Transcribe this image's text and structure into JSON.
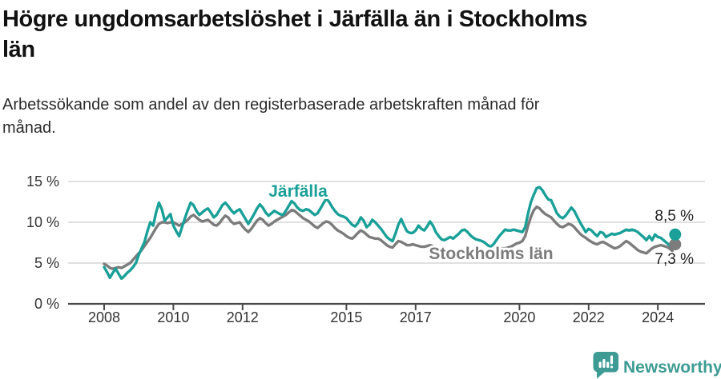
{
  "header": {
    "title": "Högre ungdomsarbetslöshet i Järfälla än i Stockholms län",
    "title_lines": [
      "Högre ungdomsarbetslöshet i Järfälla än i Stockholms",
      "län"
    ],
    "subtitle": "Arbetssökande som andel av den registerbaserade arbetskraften månad för månad.",
    "subtitle_lines": [
      "Arbetssökande som andel av den registerbaserade arbetskraften månad för",
      "månad."
    ]
  },
  "footer": {
    "brand": "Newsworthy",
    "logo_icon": "bar-chart-speech-bubble-icon"
  },
  "colors": {
    "jarfalla": "#1AA098",
    "stockholms_lan": "#7C7C7C",
    "end_label_text": "#222222",
    "axis_line": "#4a4a4a",
    "tick_label": "#333333",
    "gridline": "#e0e0e0",
    "brand_teal": "#3D9B94",
    "title_text": "#111111"
  },
  "chart_data": {
    "type": "line",
    "title": "Högre ungdomsarbetslöshet i Järfälla än i Stockholms län",
    "subtitle": "Arbetssökande som andel av den registerbaserade arbetskraften månad för månad.",
    "x_start": "2008-01",
    "x_end": "2024-07",
    "x_frequency": "monthly",
    "x_ticks": [
      2008,
      2010,
      2012,
      2015,
      2020,
      2022,
      2024,
      2017
    ],
    "x_tick_order": [
      2008,
      2010,
      2012,
      2015,
      2017,
      2020,
      2022,
      2024
    ],
    "y_ticks": [
      {
        "value": 0,
        "label": "0 %"
      },
      {
        "value": 5,
        "label": "5 %"
      },
      {
        "value": 10,
        "label": "10 %"
      },
      {
        "value": 15,
        "label": "15 %"
      }
    ],
    "ylim": [
      0,
      15
    ],
    "unit": "%",
    "grid": "horizontal",
    "legend_position": "inline-labels",
    "series": [
      {
        "name": "Stockholms län",
        "color": "#7C7C7C",
        "end_label": "7,3 %",
        "end_value": 7.3,
        "values": [
          4.9,
          4.7,
          4.4,
          4.3,
          4.4,
          4.5,
          4.4,
          4.6,
          4.8,
          5.0,
          5.4,
          5.8,
          6.2,
          6.6,
          7.1,
          7.6,
          8.1,
          8.7,
          9.3,
          9.8,
          10.0,
          10.0,
          9.9,
          10.0,
          10.0,
          9.8,
          9.6,
          9.8,
          10.0,
          10.3,
          10.7,
          10.9,
          10.6,
          10.3,
          10.1,
          10.2,
          10.3,
          10.0,
          9.7,
          9.6,
          9.9,
          10.4,
          10.8,
          10.6,
          10.1,
          9.8,
          9.9,
          10.0,
          9.5,
          9.1,
          8.8,
          9.2,
          9.7,
          10.2,
          10.5,
          10.3,
          9.9,
          9.6,
          9.8,
          10.1,
          10.3,
          10.5,
          10.7,
          10.9,
          11.2,
          11.5,
          11.4,
          11.1,
          10.8,
          10.5,
          10.3,
          10.1,
          9.8,
          9.5,
          9.3,
          9.6,
          9.9,
          10.1,
          10.0,
          9.7,
          9.3,
          9.0,
          8.8,
          8.6,
          8.3,
          8.1,
          8.0,
          8.3,
          8.7,
          9.0,
          8.8,
          8.5,
          8.2,
          8.1,
          8.0,
          8.0,
          7.8,
          7.5,
          7.2,
          7.0,
          6.9,
          7.3,
          7.7,
          7.6,
          7.4,
          7.2,
          7.2,
          7.3,
          7.2,
          7.1,
          7.0,
          7.0,
          7.1,
          7.2,
          7.1,
          6.9,
          6.7,
          6.5,
          6.4,
          6.4,
          6.5,
          6.4,
          6.3,
          6.4,
          6.6,
          6.7,
          6.6,
          6.4,
          6.2,
          6.1,
          6.1,
          6.2,
          6.3,
          6.3,
          6.2,
          6.3,
          6.5,
          6.7,
          6.8,
          6.8,
          6.9,
          7.0,
          7.2,
          7.4,
          7.5,
          7.7,
          8.3,
          9.6,
          10.7,
          11.5,
          11.9,
          11.7,
          11.3,
          11.0,
          10.8,
          10.6,
          10.2,
          9.8,
          9.5,
          9.4,
          9.6,
          9.8,
          9.7,
          9.4,
          9.0,
          8.6,
          8.3,
          8.1,
          7.8,
          7.6,
          7.4,
          7.3,
          7.5,
          7.6,
          7.4,
          7.2,
          7.0,
          6.8,
          6.9,
          7.1,
          7.4,
          7.7,
          7.5,
          7.2,
          6.9,
          6.6,
          6.4,
          6.3,
          6.2,
          6.5,
          6.8,
          7.0,
          7.1,
          7.2,
          7.1,
          7.0,
          6.8,
          6.5,
          7.3
        ]
      },
      {
        "name": "Järfälla",
        "color": "#1AA098",
        "end_label": "8,5 %",
        "end_value": 8.5,
        "values": [
          4.5,
          3.9,
          3.2,
          3.8,
          4.3,
          3.7,
          3.1,
          3.4,
          3.8,
          4.1,
          4.5,
          5.0,
          6.0,
          6.8,
          7.6,
          8.9,
          10.0,
          9.6,
          11.2,
          12.4,
          11.6,
          10.2,
          10.6,
          11.0,
          9.6,
          8.9,
          8.3,
          9.4,
          10.5,
          11.5,
          12.4,
          12.1,
          11.4,
          10.9,
          11.2,
          11.5,
          11.7,
          11.2,
          10.6,
          10.9,
          11.5,
          12.1,
          12.4,
          12.0,
          11.5,
          11.1,
          11.4,
          11.6,
          11.0,
          10.4,
          9.8,
          10.4,
          11.0,
          11.7,
          12.2,
          11.8,
          11.2,
          10.8,
          11.1,
          11.4,
          11.2,
          11.0,
          10.9,
          11.4,
          12.0,
          12.6,
          12.3,
          11.8,
          11.5,
          11.4,
          11.6,
          11.5,
          11.2,
          10.9,
          11.1,
          11.7,
          12.3,
          12.9,
          12.5,
          11.9,
          11.4,
          11.0,
          10.8,
          10.7,
          10.5,
          10.1,
          9.7,
          9.5,
          9.9,
          10.6,
          10.2,
          9.4,
          9.7,
          10.3,
          10.0,
          9.6,
          9.2,
          8.7,
          8.2,
          7.9,
          7.7,
          8.6,
          9.7,
          10.4,
          9.6,
          8.9,
          8.7,
          8.7,
          9.0,
          9.6,
          9.2,
          9.0,
          9.5,
          10.1,
          9.6,
          8.8,
          8.3,
          7.9,
          7.8,
          8.0,
          8.2,
          8.0,
          8.3,
          8.6,
          9.0,
          9.1,
          8.8,
          8.4,
          8.1,
          7.9,
          7.8,
          7.7,
          7.5,
          7.2,
          7.0,
          7.3,
          7.8,
          8.3,
          8.7,
          9.1,
          9.0,
          9.0,
          9.1,
          9.0,
          8.9,
          8.8,
          9.4,
          11.1,
          12.5,
          13.4,
          14.2,
          14.3,
          13.9,
          13.3,
          12.8,
          12.7,
          11.9,
          11.1,
          10.7,
          10.5,
          10.8,
          11.3,
          11.8,
          11.4,
          10.7,
          10.0,
          9.4,
          8.8,
          9.2,
          9.0,
          8.6,
          8.3,
          8.8,
          8.7,
          8.2,
          8.4,
          8.6,
          8.5,
          8.6,
          8.7,
          8.9,
          9.1,
          9.0,
          9.1,
          9.0,
          8.8,
          8.5,
          8.2,
          7.8,
          8.3,
          7.8,
          8.5,
          8.2,
          8.1,
          7.8,
          7.5,
          7.2,
          6.9,
          8.5
        ]
      }
    ]
  }
}
